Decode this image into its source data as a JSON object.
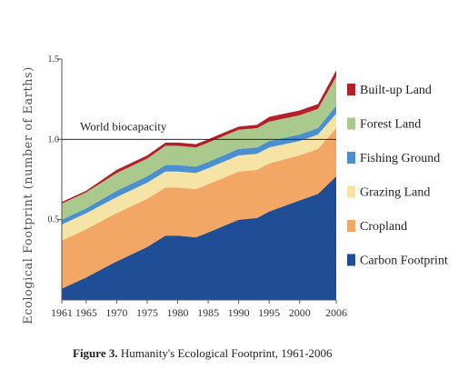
{
  "caption": {
    "label": "Figure 3.",
    "text": "Humanity's Ecological Footprint, 1961-2006"
  },
  "chart_data": {
    "type": "area",
    "stacked": true,
    "ylabel": "Ecological Footprint (number of Earths)",
    "xlim": [
      1961,
      2006
    ],
    "ylim": [
      0,
      1.5
    ],
    "yticks": [
      "0.5",
      "1.0",
      "1.5"
    ],
    "xticks": [
      "1961",
      "1965",
      "1970",
      "1975",
      "1980",
      "1985",
      "1990",
      "1995",
      "2000",
      "2006"
    ],
    "grid": false,
    "legend_position": "right",
    "reference_line": {
      "label": "World biocapacity",
      "value": 1.0
    },
    "x": [
      1961,
      1965,
      1970,
      1975,
      1978,
      1980,
      1983,
      1985,
      1990,
      1993,
      1995,
      2000,
      2003,
      2006
    ],
    "series": [
      {
        "name": "Carbon Footprint",
        "color": "#1f4e96",
        "values": [
          0.07,
          0.14,
          0.24,
          0.33,
          0.4,
          0.4,
          0.39,
          0.42,
          0.5,
          0.51,
          0.55,
          0.62,
          0.66,
          0.77
        ]
      },
      {
        "name": "Cropland",
        "color": "#f2a765",
        "values": [
          0.3,
          0.3,
          0.3,
          0.3,
          0.3,
          0.3,
          0.3,
          0.3,
          0.3,
          0.3,
          0.3,
          0.28,
          0.28,
          0.3
        ]
      },
      {
        "name": "Grazing Land",
        "color": "#f6e4a6",
        "values": [
          0.1,
          0.1,
          0.1,
          0.1,
          0.1,
          0.1,
          0.1,
          0.1,
          0.1,
          0.1,
          0.1,
          0.09,
          0.09,
          0.09
        ]
      },
      {
        "name": "Fishing Ground",
        "color": "#4a90d0",
        "values": [
          0.03,
          0.03,
          0.04,
          0.04,
          0.04,
          0.04,
          0.04,
          0.04,
          0.04,
          0.04,
          0.04,
          0.04,
          0.04,
          0.05
        ]
      },
      {
        "name": "Forest Land",
        "color": "#a9c98d",
        "values": [
          0.1,
          0.1,
          0.11,
          0.11,
          0.12,
          0.12,
          0.12,
          0.12,
          0.12,
          0.12,
          0.12,
          0.12,
          0.12,
          0.18
        ]
      },
      {
        "name": "Built-up Land",
        "color": "#b3202a",
        "values": [
          0.01,
          0.01,
          0.02,
          0.02,
          0.02,
          0.02,
          0.02,
          0.02,
          0.02,
          0.02,
          0.03,
          0.03,
          0.03,
          0.04
        ]
      }
    ],
    "legend_order": [
      "Built-up Land",
      "Forest Land",
      "Fishing Ground",
      "Grazing Land",
      "Cropland",
      "Carbon Footprint"
    ]
  }
}
